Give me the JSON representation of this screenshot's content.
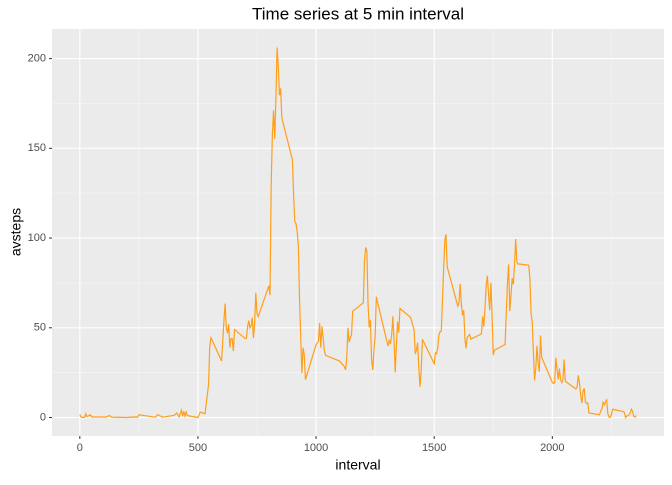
{
  "chart_data": {
    "type": "line",
    "title": "Time series at 5 min interval",
    "x_label": "interval",
    "y_label": "avsteps",
    "x": [
      0,
      5,
      10,
      20,
      25,
      30,
      45,
      50,
      100,
      110,
      125,
      135,
      200,
      220,
      245,
      250,
      320,
      330,
      350,
      400,
      410,
      420,
      430,
      435,
      440,
      445,
      450,
      455,
      500,
      510,
      530,
      545,
      550,
      555,
      600,
      610,
      615,
      620,
      625,
      630,
      635,
      640,
      645,
      650,
      655,
      700,
      705,
      710,
      715,
      720,
      725,
      730,
      735,
      740,
      745,
      750,
      755,
      800,
      805,
      810,
      815,
      820,
      825,
      830,
      835,
      840,
      845,
      850,
      855,
      900,
      905,
      910,
      915,
      920,
      925,
      930,
      935,
      940,
      945,
      950,
      955,
      1000,
      1010,
      1015,
      1020,
      1025,
      1030,
      1035,
      1040,
      1100,
      1120,
      1125,
      1130,
      1135,
      1140,
      1145,
      1150,
      1155,
      1200,
      1205,
      1210,
      1215,
      1220,
      1225,
      1230,
      1235,
      1240,
      1245,
      1250,
      1255,
      1300,
      1305,
      1310,
      1315,
      1320,
      1325,
      1330,
      1335,
      1340,
      1345,
      1350,
      1355,
      1400,
      1415,
      1420,
      1425,
      1430,
      1435,
      1440,
      1445,
      1450,
      1500,
      1505,
      1510,
      1515,
      1520,
      1525,
      1530,
      1535,
      1540,
      1545,
      1550,
      1555,
      1600,
      1605,
      1610,
      1615,
      1620,
      1625,
      1630,
      1635,
      1640,
      1645,
      1650,
      1655,
      1700,
      1705,
      1710,
      1715,
      1720,
      1725,
      1730,
      1735,
      1740,
      1745,
      1750,
      1755,
      1800,
      1805,
      1810,
      1815,
      1820,
      1825,
      1830,
      1835,
      1840,
      1845,
      1850,
      1855,
      1900,
      1905,
      1910,
      1915,
      1920,
      1925,
      1930,
      1935,
      1940,
      1945,
      1950,
      1955,
      2000,
      2005,
      2010,
      2015,
      2020,
      2025,
      2030,
      2035,
      2040,
      2045,
      2050,
      2055,
      2100,
      2105,
      2110,
      2115,
      2120,
      2125,
      2130,
      2135,
      2140,
      2145,
      2150,
      2155,
      2200,
      2205,
      2210,
      2215,
      2220,
      2225,
      2230,
      2235,
      2240,
      2245,
      2250,
      2255,
      2300,
      2305,
      2310,
      2315,
      2320,
      2325,
      2330,
      2335,
      2340,
      2345,
      2350,
      2355
    ],
    "series": [
      {
        "name": "avsteps",
        "color": "#ff9e1b",
        "values": [
          1.7,
          0.3,
          0.1,
          0.1,
          2.1,
          0.5,
          1.5,
          0.3,
          0.3,
          0.2,
          1.1,
          0.2,
          0,
          0.3,
          0.2,
          1.5,
          0.2,
          1.6,
          0.2,
          1.2,
          2.6,
          0.3,
          4.1,
          0.7,
          3.5,
          0.8,
          3.1,
          1.1,
          0,
          3.0,
          2.1,
          18.3,
          39.5,
          44.5,
          31.5,
          53.8,
          63.5,
          50,
          47,
          52,
          39,
          44,
          44,
          37,
          49,
          44,
          44,
          50.5,
          54,
          49.9,
          50.9,
          55.7,
          44.3,
          52.3,
          69.5,
          57.8,
          56.2,
          73.4,
          68.2,
          129.4,
          157.5,
          171.2,
          155.4,
          177.3,
          206.2,
          195.9,
          179.6,
          183.4,
          167.0,
          143.5,
          124.0,
          109.1,
          108.1,
          103.7,
          95.9,
          66.2,
          45.2,
          24.8,
          38.8,
          35.0,
          21.1,
          40.6,
          42.4,
          52.7,
          38.9,
          50.8,
          44.3,
          37.4,
          34.7,
          31.4,
          28.4,
          26.5,
          33.3,
          50.0,
          42.0,
          44.6,
          46.0,
          59.2,
          63.9,
          87.6,
          94.8,
          92.8,
          63.4,
          50.2,
          54.5,
          32.4,
          26.5,
          37.7,
          45.1,
          67.3,
          42.3,
          39.9,
          43.3,
          41.0,
          46.2,
          56.4,
          42.8,
          25.1,
          40.0,
          53.5,
          47.3,
          60.8,
          55.8,
          48.7,
          35.5,
          37.5,
          41.8,
          27.5,
          17.1,
          26.1,
          43.6,
          30.0,
          36.1,
          35.5,
          38.8,
          46.0,
          47.8,
          48.1,
          65.3,
          82.9,
          98.7,
          102.1,
          84.0,
          62.1,
          64.1,
          74.5,
          63.2,
          56.9,
          59.8,
          43.9,
          38.6,
          44.7,
          45.5,
          46.2,
          43.7,
          46.6,
          56.3,
          50.7,
          61.2,
          73.4,
          79.0,
          68.9,
          59.7,
          75.1,
          56.5,
          34.8,
          37.5,
          40.7,
          58.0,
          74.7,
          85.3,
          59.3,
          67.8,
          77.7,
          74.2,
          85.3,
          99.5,
          86.6,
          85.6,
          84.9,
          77.8,
          58.0,
          53.4,
          36.3,
          20.7,
          27.4,
          40.0,
          30.2,
          25.5,
          45.7,
          33.5,
          19.6,
          19.0,
          19.3,
          33.3,
          26.8,
          21.2,
          27.3,
          21.3,
          19.5,
          21.3,
          32.3,
          20.2,
          15.9,
          17.2,
          23.5,
          19.2,
          12.5,
          8.0,
          14.7,
          16.3,
          8.7,
          7.8,
          8.1,
          2.6,
          1.5,
          3.7,
          4.8,
          8.5,
          7.1,
          8.7,
          9.8,
          2.2,
          0.3,
          0.1,
          1.6,
          4.6,
          3.3,
          2.8,
          0,
          0.8,
          1.0,
          1.6,
          2.6,
          4.7,
          3.3,
          0.6,
          0.2,
          1.1
        ]
      }
    ],
    "xlim": [
      -117.75,
      2472.75
    ],
    "xticks": [
      0,
      500,
      1000,
      1500,
      2000
    ],
    "ylim": [
      -10.3,
      216.5
    ],
    "yticks": [
      0,
      50,
      100,
      150,
      200
    ],
    "grid": true
  }
}
